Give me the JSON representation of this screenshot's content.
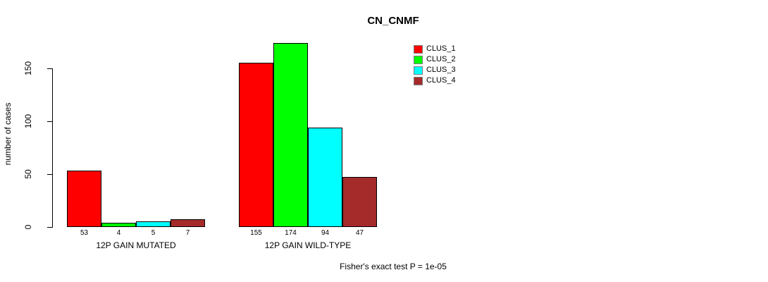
{
  "chart_data": {
    "type": "bar",
    "title": "CN_CNMF",
    "ylabel": "number of cases",
    "xlabel": "",
    "yticks": [
      0,
      50,
      100,
      150
    ],
    "ylim": [
      0,
      175
    ],
    "grid": false,
    "legend_position": "top-right",
    "categories": [
      "12P GAIN MUTATED",
      "12P GAIN WILD-TYPE"
    ],
    "series": [
      {
        "name": "CLUS_1",
        "color": "#FF0000",
        "values": [
          53,
          155
        ]
      },
      {
        "name": "CLUS_2",
        "color": "#00FF00",
        "values": [
          4,
          174
        ]
      },
      {
        "name": "CLUS_3",
        "color": "#00FFFF",
        "values": [
          5,
          94
        ]
      },
      {
        "name": "CLUS_4",
        "color": "#A52A2A",
        "values": [
          7,
          47
        ]
      }
    ],
    "bar_value_labels": [
      [
        "53",
        "4",
        "5",
        "7"
      ],
      [
        "155",
        "174",
        "94",
        "47"
      ]
    ],
    "annotation": "Fisher's exact test P = 1e-05"
  }
}
